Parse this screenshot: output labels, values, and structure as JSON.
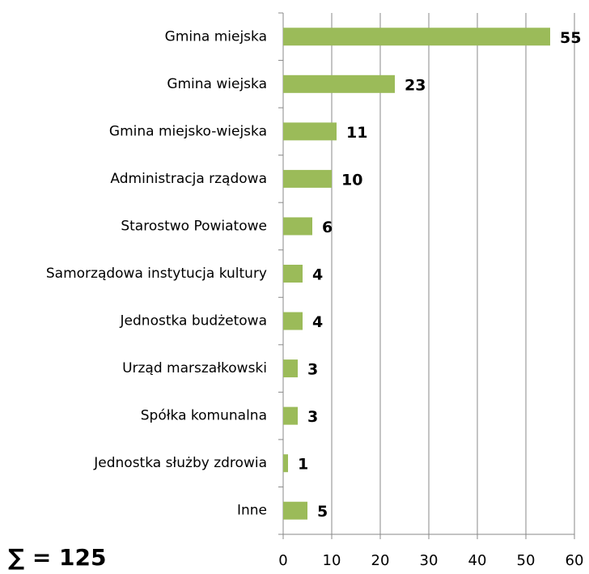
{
  "chart_data": {
    "type": "bar",
    "orientation": "horizontal",
    "categories": [
      "Gmina miejska",
      "Gmina wiejska",
      "Gmina miejsko-wiejska",
      "Administracja rządowa",
      "Starostwo Powiatowe",
      "Samorządowa instytucja kultury",
      "Jednostka budżetowa",
      "Urząd marszałkowski",
      "Spółka komunalna",
      "Jednostka służby zdrowia",
      "Inne"
    ],
    "values": [
      55,
      23,
      11,
      10,
      6,
      4,
      4,
      3,
      3,
      1,
      5
    ],
    "color": "#9bbb59",
    "xlim": [
      0,
      60
    ],
    "xticks": [
      0,
      10,
      20,
      30,
      40,
      50,
      60
    ],
    "grid": true,
    "annotation": "∑ = 125"
  }
}
